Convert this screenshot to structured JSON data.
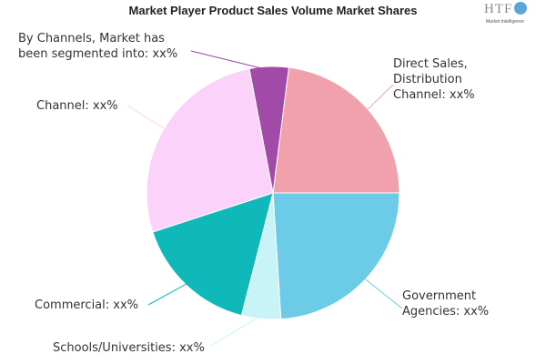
{
  "chart_data": {
    "type": "pie",
    "title": "Market Player Product Sales Volume Market Shares",
    "slices": [
      {
        "label_lines": [
          "Direct Sales,",
          "Distribution",
          "Channel: xx%"
        ],
        "value": 23,
        "color": "#f0a1ac"
      },
      {
        "label_lines": [
          "Government",
          "Agencies: xx%"
        ],
        "value": 24,
        "color": "#6ccbe6"
      },
      {
        "label_lines": [
          "Schools/Universities: xx%"
        ],
        "value": 5,
        "color": "#c8f4f8"
      },
      {
        "label_lines": [
          "Commercial: xx%"
        ],
        "value": 16,
        "color": "#10b9b9"
      },
      {
        "label_lines": [
          "Channel: xx%"
        ],
        "value": 27,
        "color": "#fbd2fa"
      },
      {
        "label_lines": [
          "By Channels, Market has",
          "been segmented into: xx%"
        ],
        "value": 5,
        "color": "#a24aa8"
      }
    ]
  },
  "logo": {
    "text": "HTF",
    "subtext": "Market Intelligence"
  }
}
